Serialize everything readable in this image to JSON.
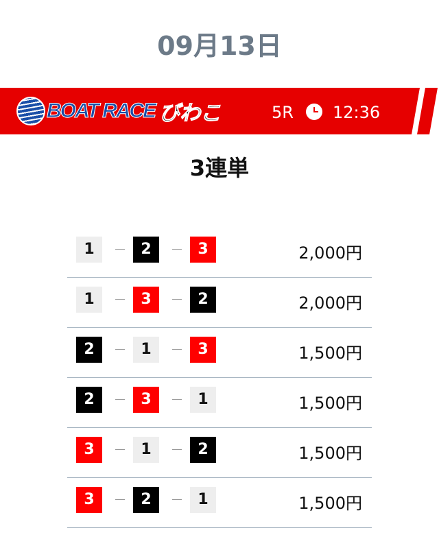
{
  "date": "09月13日",
  "banner": {
    "logo_text": "BOAT RACE",
    "logo_jp": "びわこ",
    "race": "5R",
    "time": "12:36",
    "color": "#e60000"
  },
  "bet_type": "3連単",
  "rows": [
    {
      "boats": [
        "1",
        "2",
        "3"
      ],
      "price": "2,000円"
    },
    {
      "boats": [
        "1",
        "3",
        "2"
      ],
      "price": "2,000円"
    },
    {
      "boats": [
        "2",
        "1",
        "3"
      ],
      "price": "1,500円"
    },
    {
      "boats": [
        "2",
        "3",
        "1"
      ],
      "price": "1,500円"
    },
    {
      "boats": [
        "3",
        "1",
        "2"
      ],
      "price": "1,500円"
    },
    {
      "boats": [
        "3",
        "2",
        "1"
      ],
      "price": "1,500円"
    }
  ]
}
